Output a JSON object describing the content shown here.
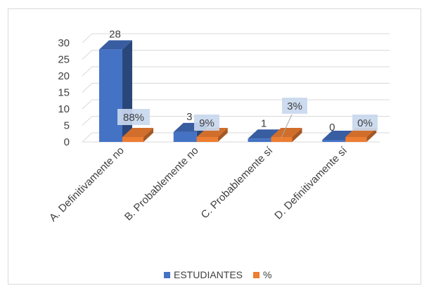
{
  "chart_data": {
    "type": "bar",
    "title": "",
    "xlabel": "",
    "ylabel": "",
    "categories": [
      "A. Definitivamente no",
      "B. Probablemente no",
      "C. Probablemente sí",
      "D. Definitivamente sí"
    ],
    "series": [
      {
        "name": "ESTUDIANTES",
        "values": [
          28,
          3,
          1,
          0
        ],
        "labels": [
          "28",
          "3",
          "1",
          "0"
        ],
        "color": "#4472c4"
      },
      {
        "name": "%",
        "values": [
          0.88,
          0.09,
          0.03,
          0.0
        ],
        "labels": [
          "88%",
          "9%",
          "3%",
          "0%"
        ],
        "color": "#ed7d31"
      }
    ],
    "yticks": [
      "0",
      "5",
      "10",
      "15",
      "20",
      "25",
      "30"
    ],
    "ylim": [
      0,
      30
    ],
    "grid": true,
    "legend_position": "bottom",
    "style": "3d-clustered-column"
  }
}
